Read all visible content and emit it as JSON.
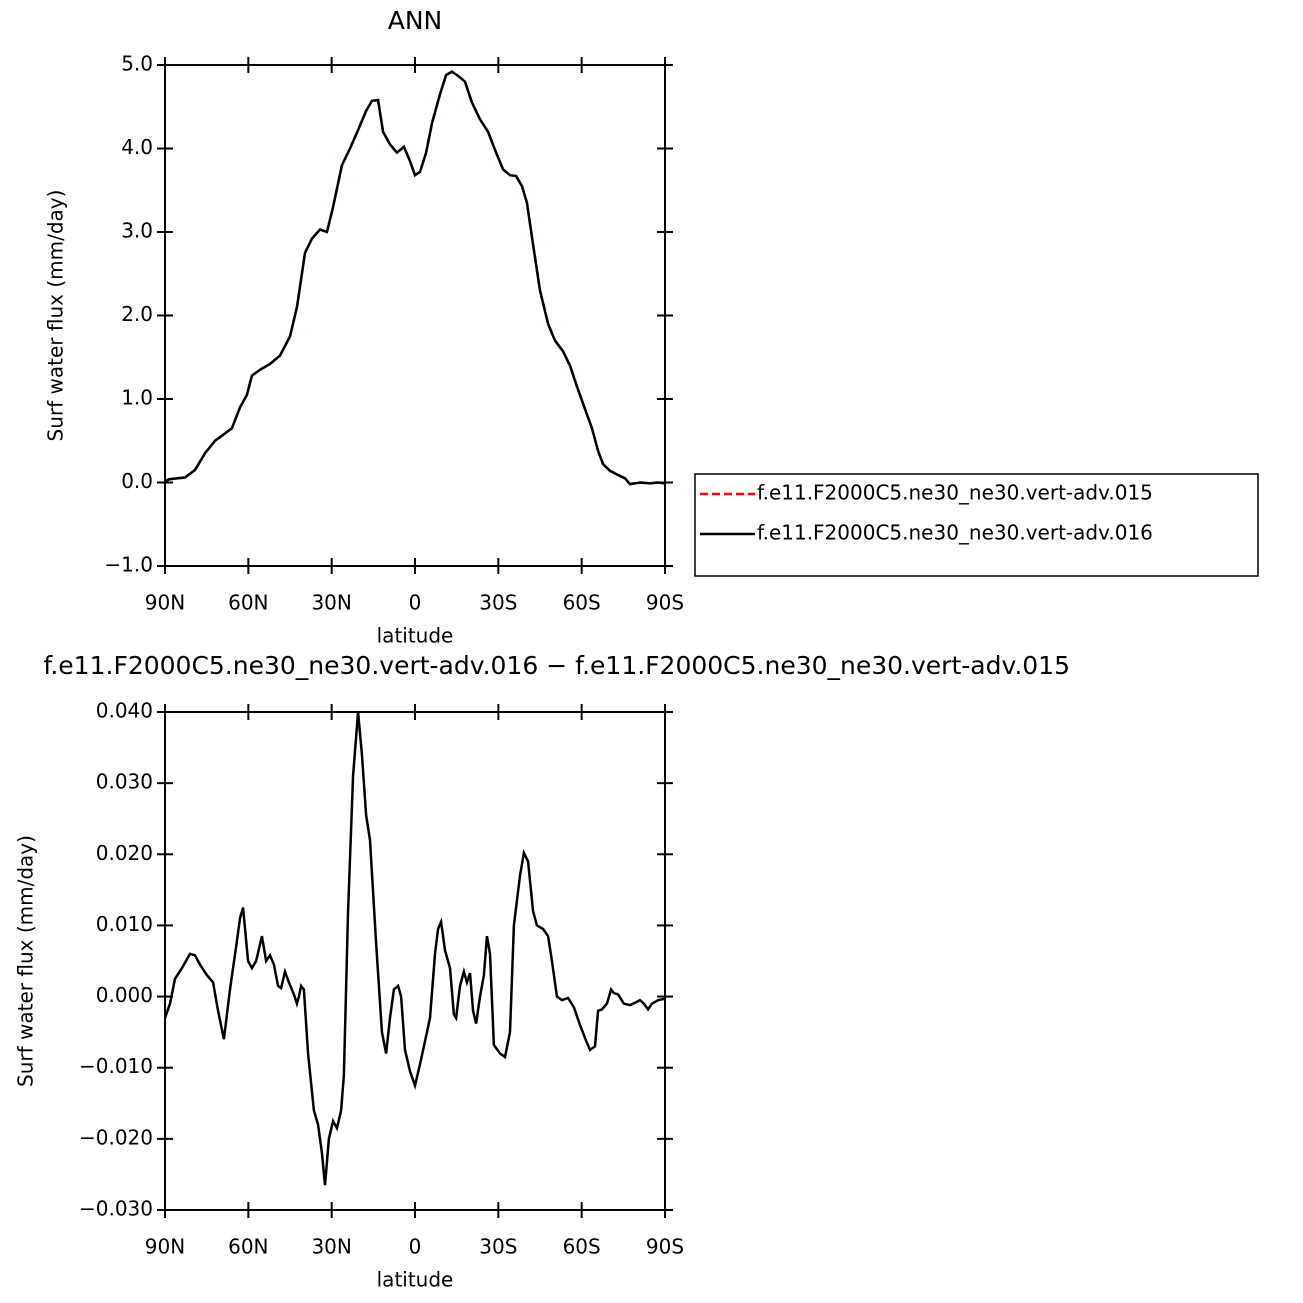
{
  "chart_data": [
    {
      "type": "line",
      "title": "ANN",
      "xlabel": "latitude",
      "ylabel": "Surf water flux (mm/day)",
      "xlim": [
        90,
        -90
      ],
      "xticks": [
        {
          "value": 90,
          "label": "90N"
        },
        {
          "value": 60,
          "label": "60N"
        },
        {
          "value": 30,
          "label": "30N"
        },
        0,
        {
          "value": -30,
          "label": "30S"
        },
        {
          "value": -60,
          "label": "60S"
        },
        {
          "value": -90,
          "label": "90S"
        }
      ],
      "ylim": [
        -1.0,
        5.0
      ],
      "yticks": [
        {
          "value": 5,
          "label": "5.0"
        },
        {
          "value": 4,
          "label": "4.0"
        },
        {
          "value": 3,
          "label": "3.0"
        },
        {
          "value": 2,
          "label": "2.0"
        },
        {
          "value": 1,
          "label": "1.0"
        },
        {
          "value": 0,
          "label": "0.0"
        },
        {
          "value": -1,
          "label": "−1.0"
        }
      ],
      "legend": "right",
      "x": [
        90,
        88.2,
        82.8,
        79.2,
        75.6,
        72,
        69.5,
        65.9,
        63,
        60.5,
        58.7,
        55.8,
        52.2,
        48.6,
        45,
        42.5,
        39.6,
        37.1,
        34.2,
        31.7,
        29.5,
        26.3,
        23.4,
        20.5,
        17.6,
        15.5,
        13.3,
        11.5,
        9,
        6.5,
        4,
        1.8,
        0,
        -1.8,
        -4,
        -6.1,
        -9,
        -11.2,
        -13.3,
        -15.5,
        -18,
        -20.5,
        -23.4,
        -26.3,
        -29.2,
        -31.7,
        -34.2,
        -36.4,
        -38.5,
        -40.3,
        -42.5,
        -45,
        -47.9,
        -50.4,
        -53.3,
        -55.8,
        -58.3,
        -61.2,
        -63.7,
        -65.9,
        -67.7,
        -70.2,
        -73.1,
        -75.6,
        -77.4,
        -81,
        -84.6,
        -87.5,
        -90
      ],
      "series": [
        {
          "name": "f.e11.F2000C5.ne30_ne30.vert-adv.015",
          "color": "#ff0000",
          "dashed": true,
          "values": [
            0.02,
            0.04,
            0.06,
            0.15,
            0.35,
            0.5,
            0.56,
            0.65,
            0.9,
            1.05,
            1.28,
            1.35,
            1.42,
            1.52,
            1.75,
            2.1,
            2.75,
            2.92,
            3.03,
            3.0,
            3.3,
            3.8,
            4.0,
            4.22,
            4.45,
            4.57,
            4.58,
            4.2,
            4.05,
            3.95,
            4.02,
            3.85,
            3.68,
            3.72,
            3.95,
            4.3,
            4.65,
            4.88,
            4.92,
            4.87,
            4.8,
            4.55,
            4.35,
            4.2,
            3.95,
            3.75,
            3.68,
            3.67,
            3.55,
            3.35,
            2.85,
            2.3,
            1.9,
            1.7,
            1.57,
            1.4,
            1.15,
            0.88,
            0.65,
            0.38,
            0.22,
            0.14,
            0.09,
            0.05,
            -0.02,
            0.0,
            -0.01,
            0.0,
            -0.01
          ]
        },
        {
          "name": "f.e11.F2000C5.ne30_ne30.vert-adv.016",
          "color": "#000000",
          "dashed": false,
          "values": [
            0.02,
            0.04,
            0.06,
            0.15,
            0.35,
            0.5,
            0.56,
            0.65,
            0.9,
            1.05,
            1.28,
            1.35,
            1.42,
            1.52,
            1.75,
            2.1,
            2.75,
            2.92,
            3.03,
            3.0,
            3.3,
            3.8,
            4.0,
            4.22,
            4.45,
            4.57,
            4.58,
            4.2,
            4.05,
            3.95,
            4.02,
            3.85,
            3.68,
            3.72,
            3.95,
            4.3,
            4.65,
            4.88,
            4.92,
            4.87,
            4.8,
            4.55,
            4.35,
            4.2,
            3.95,
            3.75,
            3.68,
            3.67,
            3.55,
            3.35,
            2.85,
            2.3,
            1.9,
            1.7,
            1.57,
            1.4,
            1.15,
            0.88,
            0.65,
            0.38,
            0.22,
            0.14,
            0.09,
            0.05,
            -0.02,
            0.0,
            -0.01,
            0.0,
            -0.01
          ]
        }
      ]
    },
    {
      "type": "line",
      "title": "f.e11.F2000C5.ne30_ne30.vert-adv.016 − f.e11.F2000C5.ne30_ne30.vert-adv.015",
      "xlabel": "latitude",
      "ylabel": "Surf water flux (mm/day)",
      "xlim": [
        90,
        -90
      ],
      "xticks": [
        {
          "value": 90,
          "label": "90N"
        },
        {
          "value": 60,
          "label": "60N"
        },
        {
          "value": 30,
          "label": "30N"
        },
        0,
        {
          "value": -30,
          "label": "30S"
        },
        {
          "value": -60,
          "label": "60S"
        },
        {
          "value": -90,
          "label": "90S"
        }
      ],
      "ylim": [
        -0.03,
        0.04
      ],
      "yticks": [
        {
          "value": 0.04,
          "label": "0.040"
        },
        {
          "value": 0.03,
          "label": "0.030"
        },
        {
          "value": 0.02,
          "label": "0.020"
        },
        {
          "value": 0.01,
          "label": "0.010"
        },
        {
          "value": 0,
          "label": "0.000"
        },
        {
          "value": -0.01,
          "label": "−0.010"
        },
        {
          "value": -0.02,
          "label": "−0.020"
        },
        {
          "value": -0.03,
          "label": "−0.030"
        }
      ],
      "x": [
        90,
        88.2,
        86.4,
        83.9,
        81,
        79.2,
        77.4,
        74.9,
        72.7,
        70.9,
        68.8,
        66.6,
        64.4,
        63,
        61.9,
        60.1,
        58.7,
        57.2,
        55.1,
        53.6,
        52.2,
        50.8,
        49.3,
        48.2,
        46.8,
        45.4,
        43.6,
        42.5,
        41.8,
        41,
        40,
        38.5,
        36.4,
        34.9,
        33.5,
        32.4,
        31,
        29.5,
        28.1,
        26.6,
        25.6,
        24.1,
        22.3,
        20.5,
        19.1,
        17.6,
        16.2,
        14,
        11.9,
        10.4,
        9,
        7.6,
        6.1,
        5,
        3.6,
        1.8,
        0,
        -1.8,
        -3.2,
        -5.4,
        -7.2,
        -8.3,
        -9.4,
        -10.8,
        -12.6,
        -14,
        -14.8,
        -16.2,
        -17.6,
        -18.7,
        -19.8,
        -20.9,
        -22,
        -23.4,
        -24.8,
        -25.9,
        -27,
        -28.4,
        -30.6,
        -32.4,
        -34.2,
        -35.6,
        -37.8,
        -39.2,
        -40.7,
        -42.5,
        -43.9,
        -46.1,
        -47.9,
        -49.3,
        -51.1,
        -52.9,
        -55.1,
        -57.2,
        -59.4,
        -61.6,
        -63,
        -64.8,
        -65.9,
        -67.3,
        -69.1,
        -70.6,
        -71.6,
        -73.1,
        -75.2,
        -77.4,
        -79.6,
        -81,
        -82.4,
        -83.9,
        -85.3,
        -87.5,
        -90
      ],
      "series": [
        {
          "color": "#000000",
          "dashed": false,
          "values": [
            -0.003,
            -0.001,
            0.0025,
            0.004,
            0.006,
            0.0058,
            0.0045,
            0.003,
            0.002,
            -0.002,
            -0.006,
            0.001,
            0.007,
            0.011,
            0.0125,
            0.005,
            0.004,
            0.005,
            0.0085,
            0.005,
            0.0058,
            0.0045,
            0.0015,
            0.0012,
            0.0035,
            0.002,
            0.0003,
            -0.001,
            0.0,
            0.0015,
            0.001,
            -0.008,
            -0.016,
            -0.018,
            -0.022,
            -0.0265,
            -0.02,
            -0.0175,
            -0.0185,
            -0.016,
            -0.011,
            0.012,
            0.031,
            0.04,
            0.034,
            0.0255,
            0.022,
            0.0075,
            -0.005,
            -0.008,
            -0.003,
            0.001,
            0.0015,
            0.0,
            -0.0075,
            -0.0105,
            -0.0125,
            -0.0095,
            -0.007,
            -0.003,
            0.006,
            0.0095,
            0.0105,
            0.0065,
            0.004,
            -0.0025,
            -0.003,
            0.0015,
            0.0035,
            0.002,
            0.0033,
            -0.002,
            -0.0038,
            0.0,
            0.003,
            0.0085,
            0.006,
            -0.0068,
            -0.008,
            -0.0085,
            -0.005,
            0.01,
            0.017,
            0.0202,
            0.019,
            0.012,
            0.01,
            0.0095,
            0.0085,
            0.005,
            0.0,
            -0.0005,
            -0.0002,
            -0.0015,
            -0.004,
            -0.0062,
            -0.0075,
            -0.007,
            -0.002,
            -0.0018,
            -0.001,
            0.001,
            0.0005,
            0.0003,
            -0.001,
            -0.0012,
            -0.0008,
            -0.0005,
            -0.001,
            -0.0018,
            -0.001,
            -0.0005,
            -0.0003
          ]
        }
      ]
    }
  ]
}
